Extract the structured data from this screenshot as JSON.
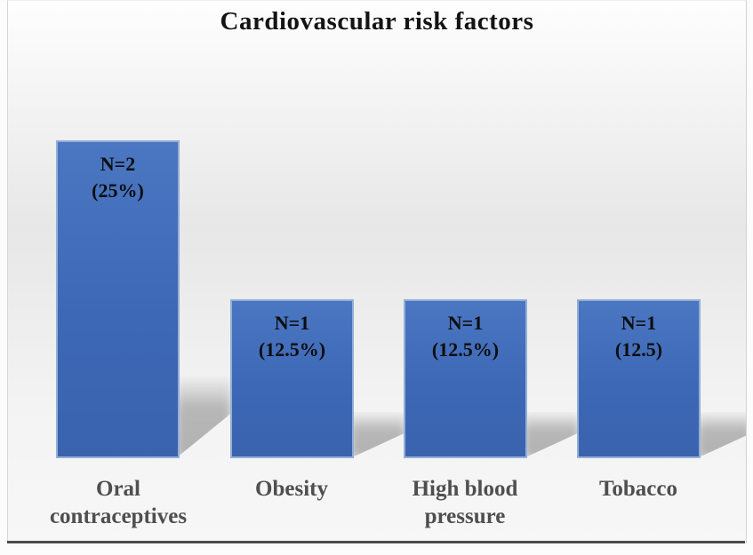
{
  "chart_data": {
    "type": "bar",
    "title": "Cardiovascular risk factors",
    "categories": [
      "Oral contraceptives",
      "Obesity",
      "High blood pressure",
      "Tobacco"
    ],
    "values": [
      2,
      1,
      1,
      1
    ],
    "series": [
      {
        "name": "Cardiovascular risk factors",
        "values": [
          2,
          1,
          1,
          1
        ]
      }
    ],
    "bars": [
      {
        "category": "Oral contraceptives",
        "value": 2,
        "percent": 25,
        "label_line1": "N=2",
        "label_line2": "(25%)"
      },
      {
        "category": "Obesity",
        "value": 1,
        "percent": 12.5,
        "label_line1": "N=1",
        "label_line2": "(12.5%)"
      },
      {
        "category": "High blood pressure",
        "value": 1,
        "percent": 12.5,
        "label_line1": "N=1",
        "label_line2": "(12.5%)"
      },
      {
        "category": "Tobacco",
        "value": 1,
        "percent": 12.5,
        "label_line1": "N=1",
        "label_line2": "(12.5)"
      }
    ],
    "ylim": [
      0,
      2.3
    ],
    "grid": false,
    "legend": false,
    "xlabel": "",
    "ylabel": "",
    "colors": {
      "bar_fill": "#3d68b5",
      "bar_border": "#94afd7",
      "bar_label_text": "#0d0d0d",
      "category_text": "#4f4f4f",
      "title_text": "#141414",
      "axis_line": "#4d4d4d",
      "background_top": "#fefefe",
      "background_mid": "#e7e7e7"
    }
  }
}
